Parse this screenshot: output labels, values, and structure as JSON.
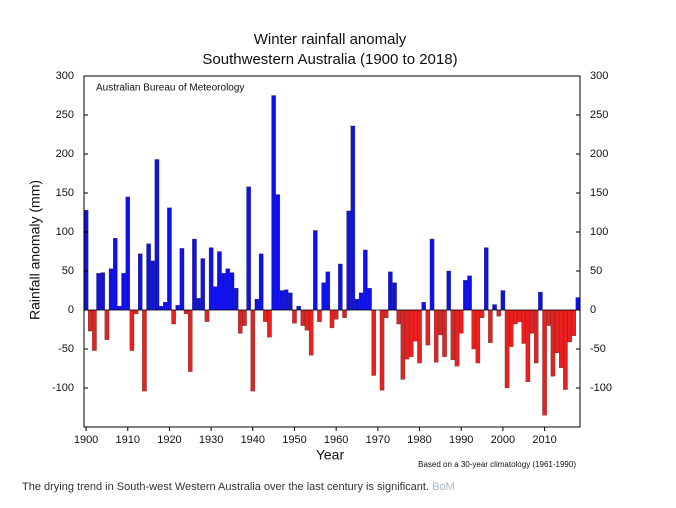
{
  "chart_data": {
    "type": "bar",
    "title": "Winter rainfall anomaly",
    "subtitle": "Southwestern Australia (1900 to 2018)",
    "annotation": "Australian Bureau of Meteorology",
    "note": "Based on a 30-year climatology (1961-1990)",
    "xlabel": "Year",
    "ylabel": "Rainfall anomaly (mm)",
    "positive_color": "#1010e8",
    "negative_color": "#e82020",
    "x": [
      1900,
      1901,
      1902,
      1903,
      1904,
      1905,
      1906,
      1907,
      1908,
      1909,
      1910,
      1911,
      1912,
      1913,
      1914,
      1915,
      1916,
      1917,
      1918,
      1919,
      1920,
      1921,
      1922,
      1923,
      1924,
      1925,
      1926,
      1927,
      1928,
      1929,
      1930,
      1931,
      1932,
      1933,
      1934,
      1935,
      1936,
      1937,
      1938,
      1939,
      1940,
      1941,
      1942,
      1943,
      1944,
      1945,
      1946,
      1947,
      1948,
      1949,
      1950,
      1951,
      1952,
      1953,
      1954,
      1955,
      1956,
      1957,
      1958,
      1959,
      1960,
      1961,
      1962,
      1963,
      1964,
      1965,
      1966,
      1967,
      1968,
      1969,
      1970,
      1971,
      1972,
      1973,
      1974,
      1975,
      1976,
      1977,
      1978,
      1979,
      1980,
      1981,
      1982,
      1983,
      1984,
      1985,
      1986,
      1987,
      1988,
      1989,
      1990,
      1991,
      1992,
      1993,
      1994,
      1995,
      1996,
      1997,
      1998,
      1999,
      2000,
      2001,
      2002,
      2003,
      2004,
      2005,
      2006,
      2007,
      2008,
      2009,
      2010,
      2011,
      2012,
      2013,
      2014,
      2015,
      2016,
      2017,
      2018
    ],
    "values": [
      128,
      -27,
      -52,
      47,
      48,
      -38,
      53,
      92,
      5,
      47,
      145,
      -52,
      -5,
      72,
      -104,
      85,
      63,
      193,
      5,
      10,
      131,
      -18,
      6,
      79,
      -5,
      -79,
      91,
      15,
      66,
      -15,
      80,
      30,
      75,
      47,
      53,
      48,
      28,
      -30,
      -20,
      158,
      -104,
      14,
      72,
      -15,
      -35,
      275,
      148,
      25,
      26,
      22,
      -17,
      5,
      -20,
      -26,
      -58,
      102,
      -15,
      35,
      49,
      -23,
      -12,
      59,
      -10,
      127,
      236,
      14,
      22,
      77,
      28,
      -84,
      0,
      -103,
      -10,
      49,
      35,
      -18,
      -89,
      -63,
      -60,
      -40,
      -68,
      10,
      -45,
      91,
      -67,
      -32,
      -60,
      50,
      -64,
      -72,
      -30,
      38,
      44,
      -50,
      -68,
      -10,
      80,
      -42,
      7,
      -8,
      25,
      -100,
      -47,
      -18,
      -15,
      -43,
      -92,
      -30,
      -68,
      23,
      -135,
      -20,
      -85,
      -55,
      -74,
      -102,
      -41,
      -33,
      16
    ],
    "xlim": [
      1899.5,
      2018.5
    ],
    "xticks": [
      1900,
      1910,
      1920,
      1930,
      1940,
      1950,
      1960,
      1970,
      1980,
      1990,
      2000,
      2010
    ],
    "ylim": [
      -150,
      300
    ],
    "yticks": [
      300,
      250,
      200,
      150,
      100,
      50,
      0,
      -50,
      -100
    ],
    "caption": "The drying trend in South-west Western Australia over the last century is significant.",
    "caption_source": "BoM"
  }
}
